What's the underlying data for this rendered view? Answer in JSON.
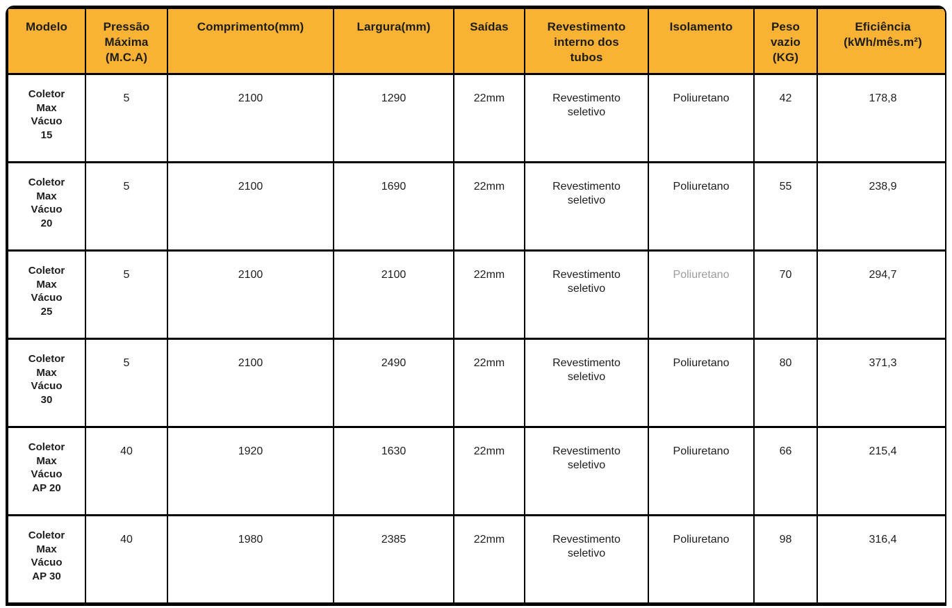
{
  "colors": {
    "header_bg": "#F9B233",
    "border": "#000000",
    "text": "#1D1D1B",
    "muted_text": "#9C9C9C",
    "background": "#FFFFFF"
  },
  "table": {
    "columns": [
      {
        "key": "modelo",
        "label": "Modelo"
      },
      {
        "key": "pressao_maxima",
        "label": "Pressão\nMáxima\n(M.C.A)"
      },
      {
        "key": "comprimento",
        "label": "Comprimento(mm)"
      },
      {
        "key": "largura",
        "label": "Largura(mm)"
      },
      {
        "key": "saidas",
        "label": "Saídas"
      },
      {
        "key": "revestimento",
        "label": "Revestimento\ninterno dos\ntubos"
      },
      {
        "key": "isolamento",
        "label": "Isolamento"
      },
      {
        "key": "peso_vazio",
        "label": "Peso\nvazio\n(KG)"
      },
      {
        "key": "eficiencia",
        "label": "Eficiência\n(kWh/mês.m²)"
      }
    ],
    "rows": [
      {
        "modelo": "Coletor\nMax\nVácuo\n15",
        "pressao_maxima": "5",
        "comprimento": "2100",
        "largura": "1290",
        "saidas": "22mm",
        "revestimento": "Revestimento\nseletivo",
        "isolamento": "Poliuretano",
        "isolamento_muted": false,
        "peso_vazio": "42",
        "eficiencia": "178,8"
      },
      {
        "modelo": "Coletor\nMax\nVácuo\n20",
        "pressao_maxima": "5",
        "comprimento": "2100",
        "largura": "1690",
        "saidas": "22mm",
        "revestimento": "Revestimento\nseletivo",
        "isolamento": "Poliuretano",
        "isolamento_muted": false,
        "peso_vazio": "55",
        "eficiencia": "238,9"
      },
      {
        "modelo": "Coletor\nMax\nVácuo\n25",
        "pressao_maxima": "5",
        "comprimento": "2100",
        "largura": "2100",
        "saidas": "22mm",
        "revestimento": "Revestimento\nseletivo",
        "isolamento": "Poliuretano",
        "isolamento_muted": true,
        "peso_vazio": "70",
        "eficiencia": "294,7"
      },
      {
        "modelo": "Coletor\nMax\nVácuo\n30",
        "pressao_maxima": "5",
        "comprimento": "2100",
        "largura": "2490",
        "saidas": "22mm",
        "revestimento": "Revestimento\nseletivo",
        "isolamento": "Poliuretano",
        "isolamento_muted": false,
        "peso_vazio": "80",
        "eficiencia": "371,3"
      },
      {
        "modelo": "Coletor\nMax\nVácuo\nAP 20",
        "pressao_maxima": "40",
        "comprimento": "1920",
        "largura": "1630",
        "saidas": "22mm",
        "revestimento": "Revestimento\nseletivo",
        "isolamento": "Poliuretano",
        "isolamento_muted": false,
        "peso_vazio": "66",
        "eficiencia": "215,4"
      },
      {
        "modelo": "Coletor\nMax\nVácuo\nAP 30",
        "pressao_maxima": "40",
        "comprimento": "1980",
        "largura": "2385",
        "saidas": "22mm",
        "revestimento": "Revestimento\nseletivo",
        "isolamento": "Poliuretano",
        "isolamento_muted": false,
        "peso_vazio": "98",
        "eficiencia": "316,4"
      }
    ]
  }
}
